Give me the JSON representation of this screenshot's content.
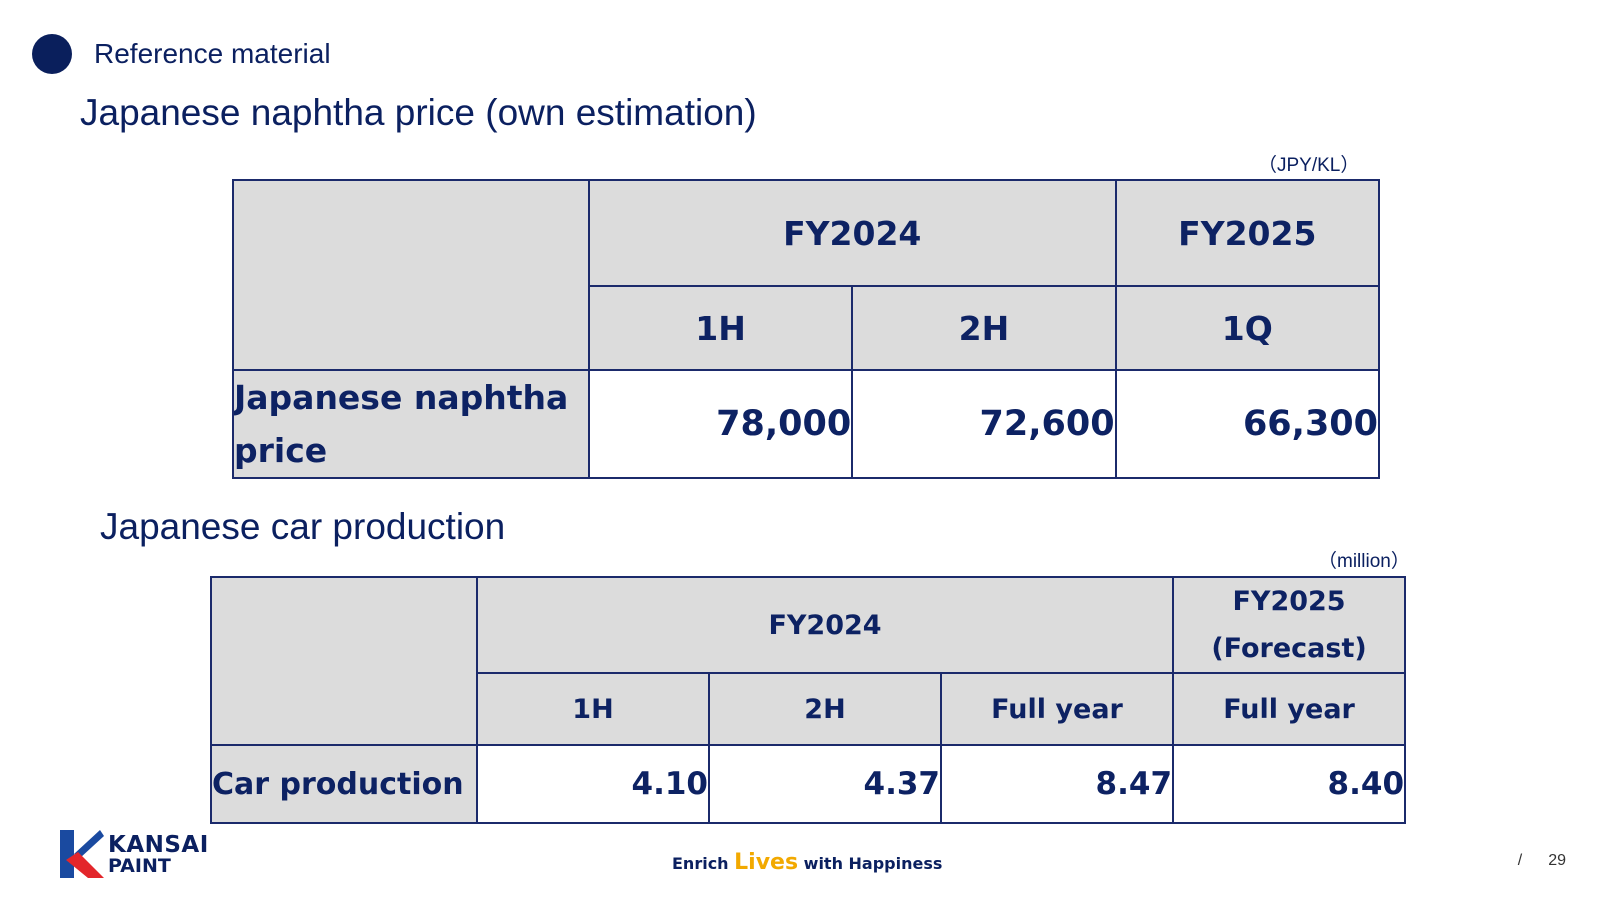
{
  "header": {
    "section_label": "Reference material"
  },
  "naphtha": {
    "title": "Japanese naphtha price (own estimation)",
    "unit": "（JPY/KL）",
    "col_groups": [
      "FY2024",
      "FY2025"
    ],
    "cols": [
      "1H",
      "2H",
      "1Q"
    ],
    "row_label": "Japanese naphtha price",
    "values": [
      "78,000",
      "72,600",
      "66,300"
    ]
  },
  "car": {
    "title": "Japanese car production",
    "unit": "（million）",
    "col_groups": [
      "FY2024",
      "FY2025 (Forecast)"
    ],
    "cols": [
      "1H",
      "2H",
      "Full year",
      "Full year"
    ],
    "row_label": "Car production",
    "values": [
      "4.10",
      "4.37",
      "8.47",
      "8.40"
    ]
  },
  "footer": {
    "logo_line1": "KANSAI",
    "logo_line2": "PAINT",
    "tagline_pre": "Enrich",
    "tagline_highlight": "Lives",
    "tagline_post": "with Happiness",
    "slash": "/",
    "page_number": "29"
  },
  "colors": {
    "navy": "#0b2060",
    "header_fill": "#dcdcdc",
    "logo_red": "#e3262b",
    "logo_blue": "#1a4aa0",
    "tagline_accent": "#f2a900"
  }
}
